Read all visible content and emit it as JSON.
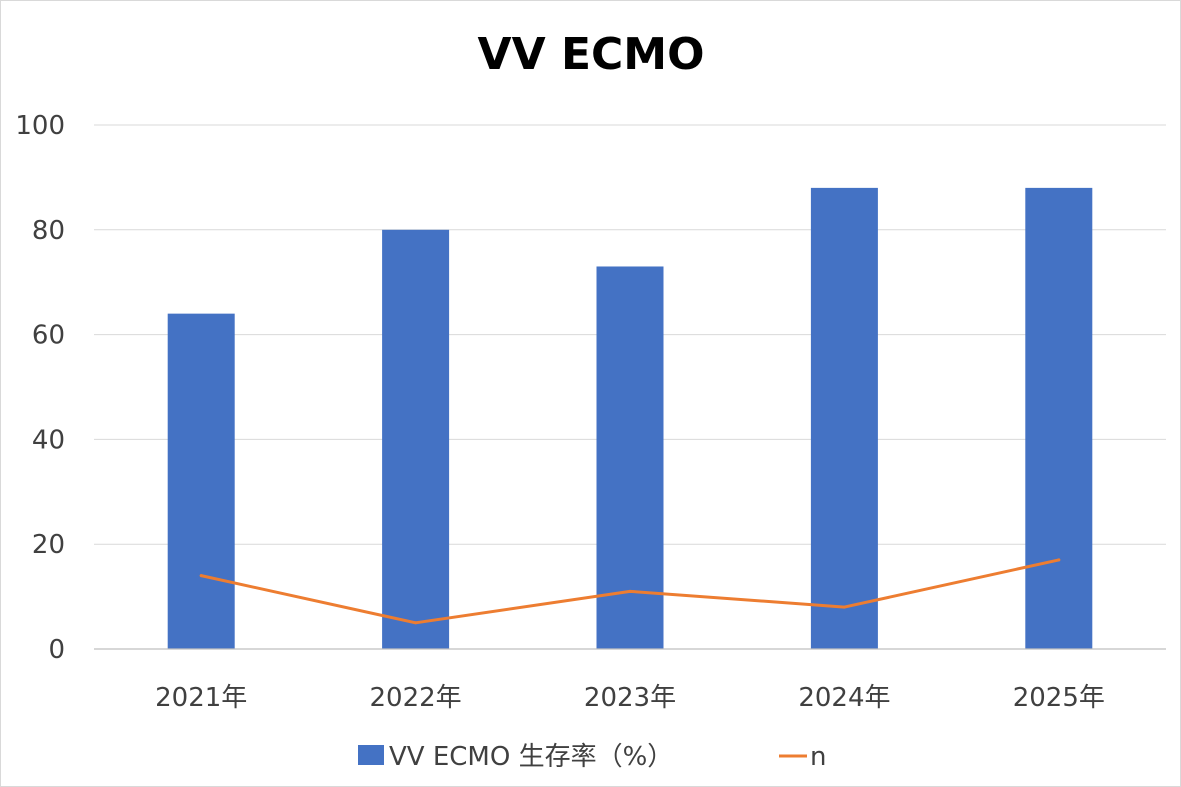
{
  "chart_data": {
    "type": "bar",
    "title": "VV ECMO",
    "categories": [
      "2021年",
      "2022年",
      "2023年",
      "2024年",
      "2025年"
    ],
    "ylim": [
      0,
      100
    ],
    "yticks": [
      0,
      20,
      40,
      60,
      80,
      100
    ],
    "grid": true,
    "legend_position": "bottom",
    "series": [
      {
        "name": "VV ECMO 生存率（%）",
        "type": "bar",
        "color": "#4472c4",
        "values": [
          64,
          80,
          73,
          88,
          88
        ]
      },
      {
        "name": "n",
        "type": "line",
        "color": "#ed7d31",
        "values": [
          14,
          5,
          11,
          8,
          17
        ]
      }
    ]
  }
}
